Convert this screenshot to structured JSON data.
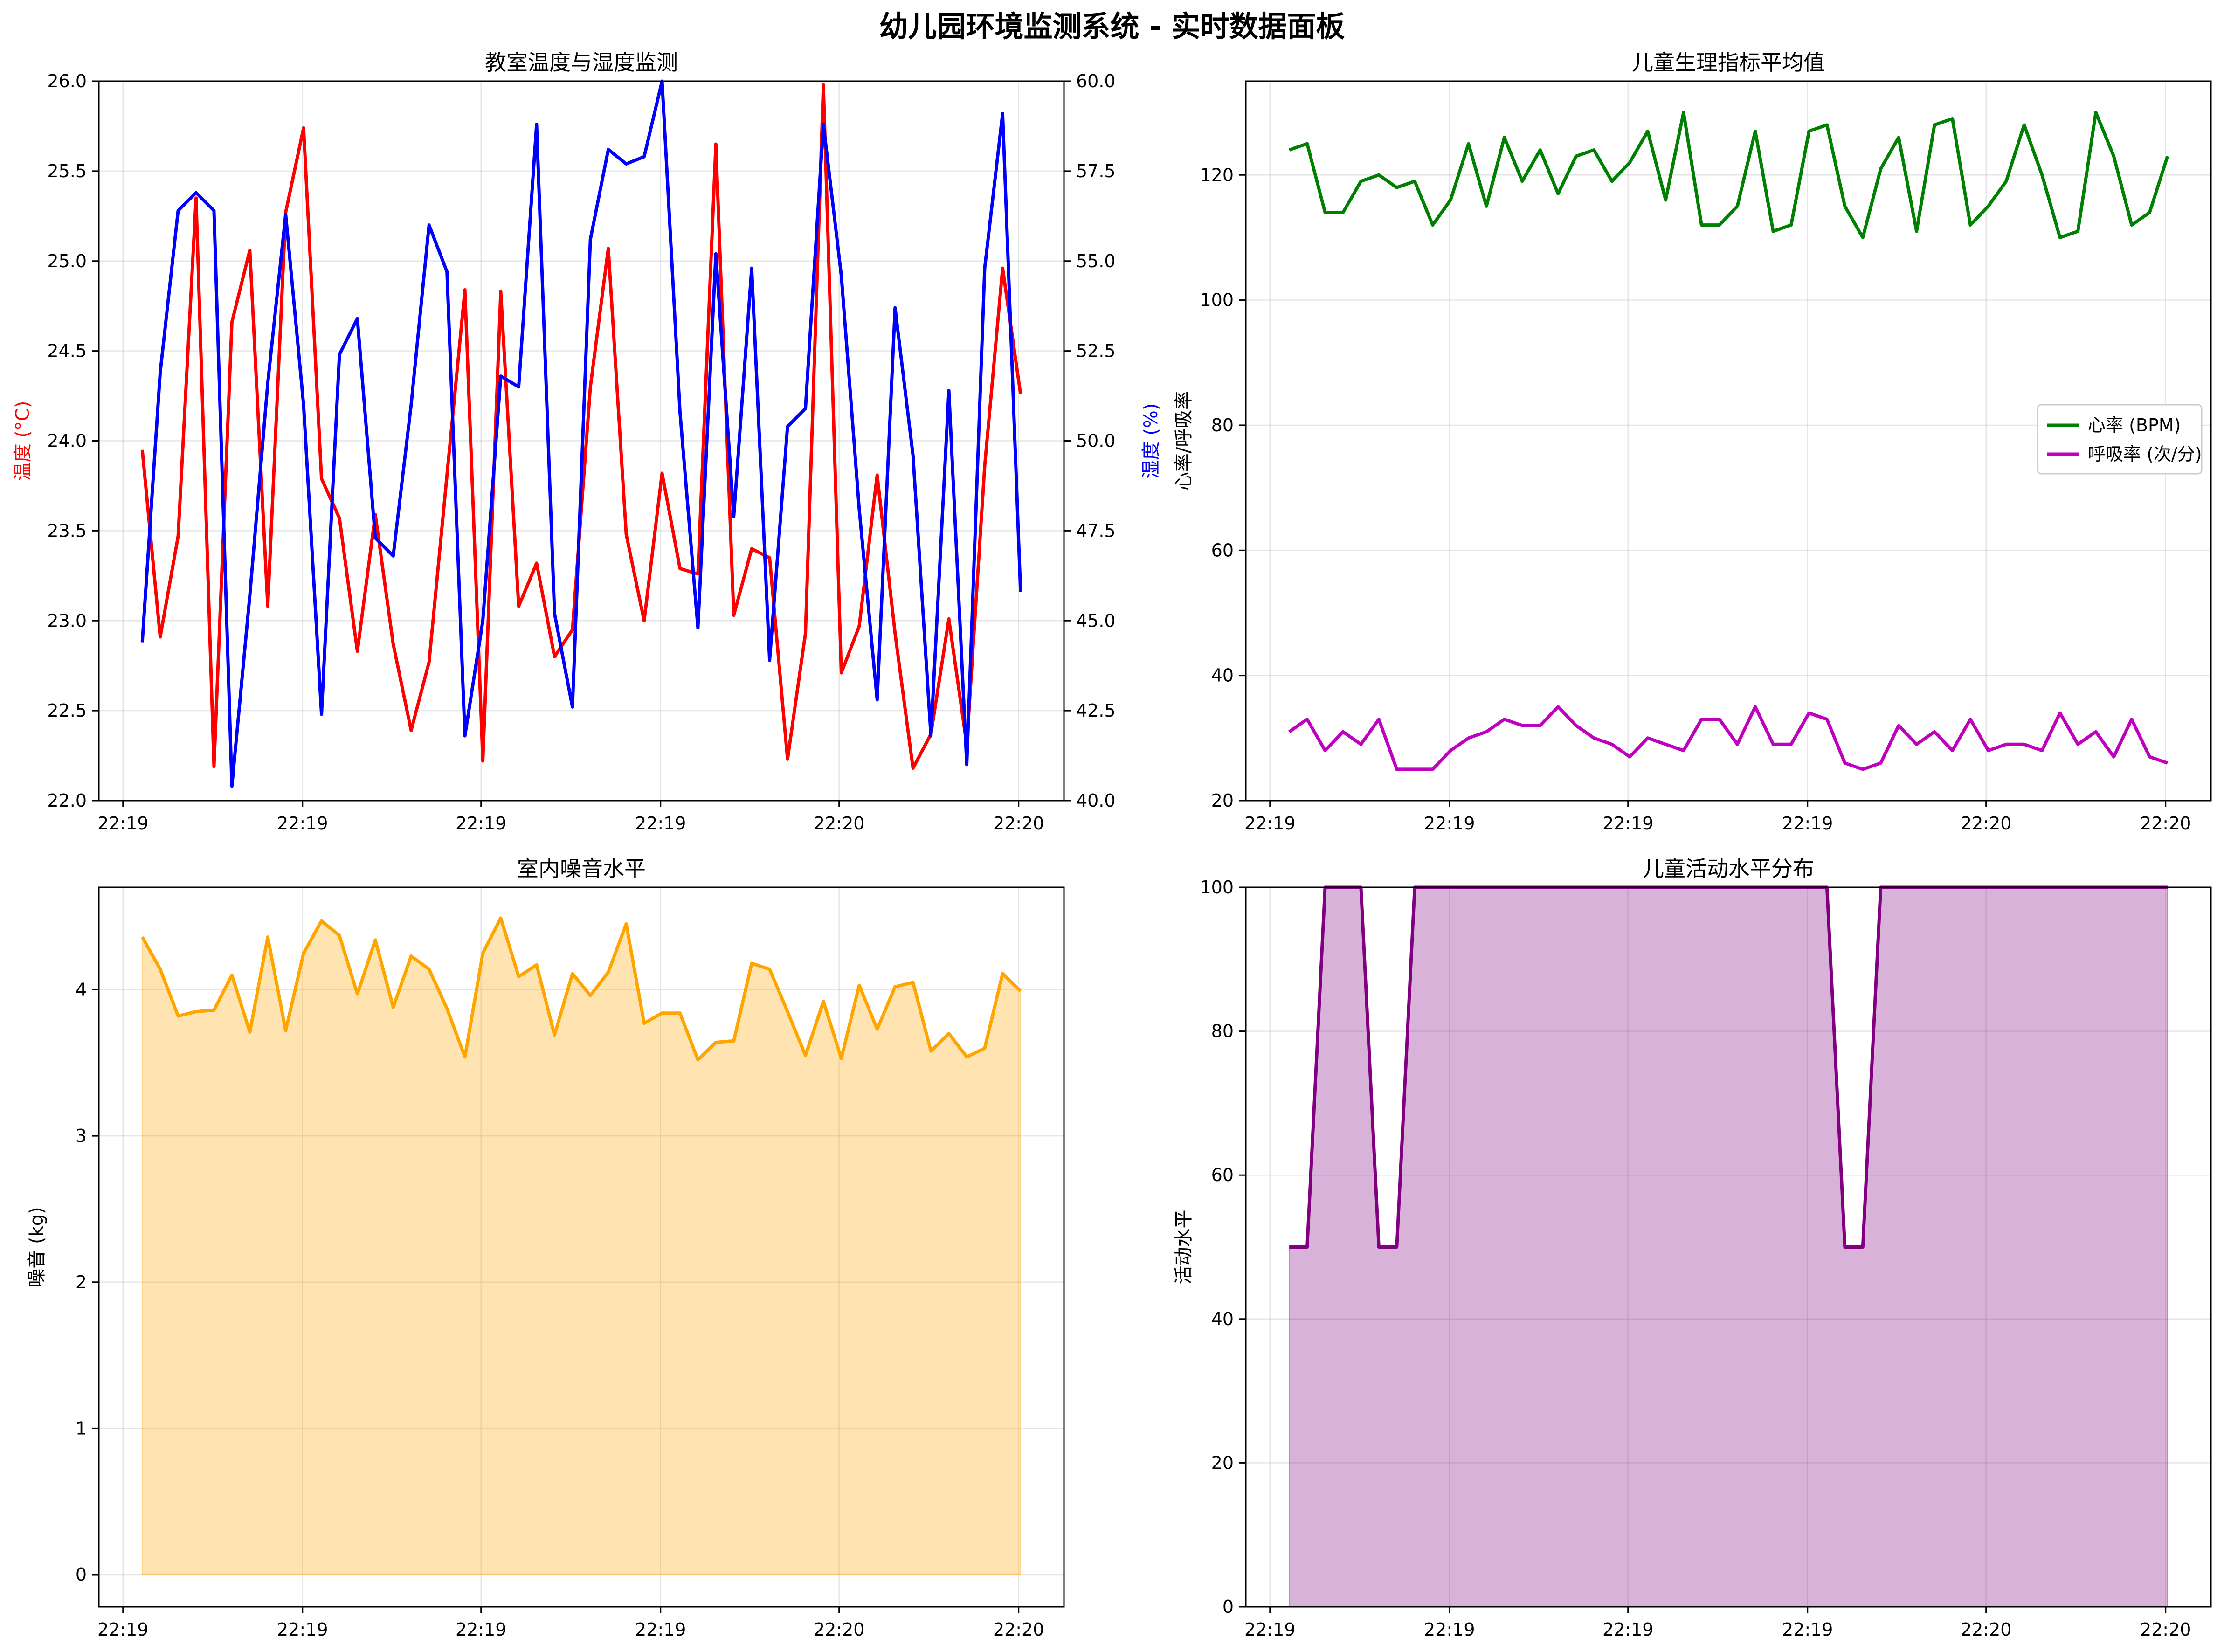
{
  "suptitle": "幼儿园环境监测系统 - 实时数据面板",
  "chart_data": [
    {
      "type": "line",
      "title": "教室温度与湿度监测",
      "xlabel": "",
      "ylabel": "温度 (°C)",
      "ylabel_right": "湿度 (%)",
      "ylim": [
        22.0,
        26.0
      ],
      "ylim_right": [
        40.0,
        60.0
      ],
      "yticks": [
        "22.0",
        "22.5",
        "23.0",
        "23.5",
        "24.0",
        "24.5",
        "25.0",
        "25.5",
        "26.0"
      ],
      "yticks_right": [
        "40.0",
        "42.5",
        "45.0",
        "47.5",
        "50.0",
        "52.5",
        "55.0",
        "57.5",
        "60.0"
      ],
      "xticks": [
        "22:19",
        "22:19",
        "22:19",
        "22:19",
        "22:20",
        "22:20"
      ],
      "grid": true,
      "series": [
        {
          "axis": "left",
          "color": "#ff0000",
          "values": [
            23.95,
            22.91,
            23.47,
            25.35,
            22.19,
            24.66,
            25.06,
            23.08,
            25.27,
            25.74,
            23.79,
            23.57,
            22.83,
            23.59,
            22.87,
            22.39,
            22.77,
            23.81,
            24.84,
            22.22,
            24.83,
            23.08,
            23.32,
            22.8,
            22.95,
            24.3,
            25.07,
            23.48,
            23.0,
            23.82,
            23.29,
            23.26,
            25.65,
            23.03,
            23.4,
            23.35,
            22.23,
            22.93,
            25.98,
            22.71,
            22.97,
            23.81,
            22.93,
            22.18,
            22.37,
            23.01,
            22.31,
            23.86,
            24.96,
            24.26
          ]
        },
        {
          "axis": "right",
          "color": "#0000ff",
          "values": [
            44.4,
            51.9,
            56.4,
            56.9,
            56.4,
            40.4,
            45.7,
            51.6,
            56.3,
            51.0,
            42.4,
            52.4,
            53.4,
            47.3,
            46.8,
            51.0,
            56.0,
            54.7,
            41.8,
            45.0,
            51.8,
            51.5,
            58.8,
            45.2,
            42.6,
            55.6,
            58.1,
            57.7,
            57.9,
            60.0,
            50.8,
            44.8,
            55.2,
            47.9,
            54.8,
            43.9,
            50.4,
            50.9,
            58.8,
            54.6,
            48.1,
            42.8,
            53.7,
            49.6,
            41.8,
            51.4,
            41.0,
            54.8,
            59.1,
            45.8
          ]
        }
      ]
    },
    {
      "type": "line",
      "title": "儿童生理指标平均值",
      "xlabel": "",
      "ylabel": "心率/呼吸率",
      "ylim": [
        20,
        135
      ],
      "yticks": [
        "20",
        "40",
        "60",
        "80",
        "100",
        "120"
      ],
      "xticks": [
        "22:19",
        "22:19",
        "22:19",
        "22:19",
        "22:20",
        "22:20"
      ],
      "grid": true,
      "legend": "center-right",
      "series": [
        {
          "name": "心率 (BPM)",
          "color": "#008000",
          "values": [
            124,
            125,
            114,
            114,
            119,
            120,
            118,
            119,
            112,
            116,
            125,
            115,
            126,
            119,
            124,
            117,
            123,
            124,
            119,
            122,
            127,
            116,
            130,
            112,
            112,
            115,
            127,
            111,
            112,
            127,
            128,
            115,
            110,
            121,
            126,
            111,
            128,
            129,
            112,
            115,
            119,
            128,
            120,
            110,
            111,
            130,
            123,
            112,
            114,
            123
          ]
        },
        {
          "name": "呼吸率 (次/分)",
          "color": "#bf00bf",
          "values": [
            31,
            33,
            28,
            31,
            29,
            33,
            25,
            25,
            25,
            28,
            30,
            31,
            33,
            32,
            32,
            35,
            32,
            30,
            29,
            27,
            30,
            29,
            28,
            33,
            33,
            29,
            35,
            29,
            29,
            34,
            33,
            26,
            25,
            26,
            32,
            29,
            31,
            28,
            33,
            28,
            29,
            29,
            28,
            34,
            29,
            31,
            27,
            33,
            27,
            26
          ]
        }
      ]
    },
    {
      "type": "area",
      "title": "室内噪音水平",
      "xlabel": "",
      "ylabel": "噪音 (kg)",
      "ylim": [
        -0.22,
        4.7
      ],
      "yticks": [
        "0",
        "1",
        "2",
        "3",
        "4"
      ],
      "xticks": [
        "22:19",
        "22:19",
        "22:19",
        "22:19",
        "22:20",
        "22:20"
      ],
      "grid": true,
      "series": [
        {
          "color": "#ffa500",
          "fill": "#ffa500",
          "values": [
            4.36,
            4.14,
            3.82,
            3.85,
            3.86,
            4.1,
            3.71,
            4.36,
            3.72,
            4.25,
            4.47,
            4.37,
            3.97,
            4.34,
            3.88,
            4.23,
            4.14,
            3.87,
            3.54,
            4.25,
            4.49,
            4.09,
            4.17,
            3.69,
            4.11,
            3.96,
            4.12,
            4.45,
            3.77,
            3.84,
            3.84,
            3.52,
            3.64,
            3.65,
            4.18,
            4.14,
            3.85,
            3.55,
            3.92,
            3.53,
            4.03,
            3.73,
            4.02,
            4.05,
            3.58,
            3.7,
            3.54,
            3.6,
            4.11,
            3.99
          ]
        }
      ]
    },
    {
      "type": "area",
      "title": "儿童活动水平分布",
      "xlabel": "",
      "ylabel": "活动水平",
      "ylim": [
        0,
        100
      ],
      "yticks": [
        "0",
        "20",
        "40",
        "60",
        "80",
        "100"
      ],
      "xticks": [
        "22:19",
        "22:19",
        "22:19",
        "22:19",
        "22:20",
        "22:20"
      ],
      "grid": true,
      "series": [
        {
          "color": "#800080",
          "fill": "#800080",
          "values": [
            50,
            50,
            100,
            100,
            100,
            50,
            50,
            100,
            100,
            100,
            100,
            100,
            100,
            100,
            100,
            100,
            100,
            100,
            100,
            100,
            100,
            100,
            100,
            100,
            100,
            100,
            100,
            100,
            100,
            100,
            100,
            50,
            50,
            100,
            100,
            100,
            100,
            100,
            100,
            100,
            100,
            100,
            100,
            100,
            100,
            100,
            100,
            100,
            100,
            100
          ]
        }
      ]
    }
  ]
}
